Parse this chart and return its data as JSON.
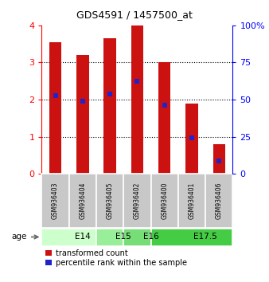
{
  "title": "GDS4591 / 1457500_at",
  "samples": [
    "GSM936403",
    "GSM936404",
    "GSM936405",
    "GSM936402",
    "GSM936400",
    "GSM936401",
    "GSM936406"
  ],
  "red_values": [
    3.55,
    3.2,
    3.65,
    4.0,
    3.0,
    1.9,
    0.8
  ],
  "blue_values": [
    2.1,
    1.95,
    2.15,
    2.5,
    1.85,
    0.97,
    0.35
  ],
  "ylim_left": [
    0,
    4
  ],
  "ylim_right": [
    0,
    100
  ],
  "yticks_left": [
    0,
    1,
    2,
    3,
    4
  ],
  "yticks_right": [
    0,
    25,
    50,
    75,
    100
  ],
  "ytick_right_labels": [
    "0",
    "25",
    "50",
    "75",
    "100%"
  ],
  "age_groups": [
    {
      "label": "E14",
      "spans": [
        0,
        2
      ],
      "color": "#ccffcc"
    },
    {
      "label": "E15",
      "spans": [
        2,
        3
      ],
      "color": "#99ee99"
    },
    {
      "label": "E16",
      "spans": [
        3,
        4
      ],
      "color": "#77dd77"
    },
    {
      "label": "E17.5",
      "spans": [
        4,
        7
      ],
      "color": "#44cc44"
    }
  ],
  "bar_color": "#cc1111",
  "blue_color": "#2222cc",
  "bar_width": 0.45,
  "bg_color": "#ffffff",
  "sample_box_color": "#c8c8c8",
  "title_fontsize": 9,
  "axis_fontsize": 8,
  "sample_fontsize": 5.5,
  "age_fontsize": 7.5,
  "legend_fontsize": 7
}
